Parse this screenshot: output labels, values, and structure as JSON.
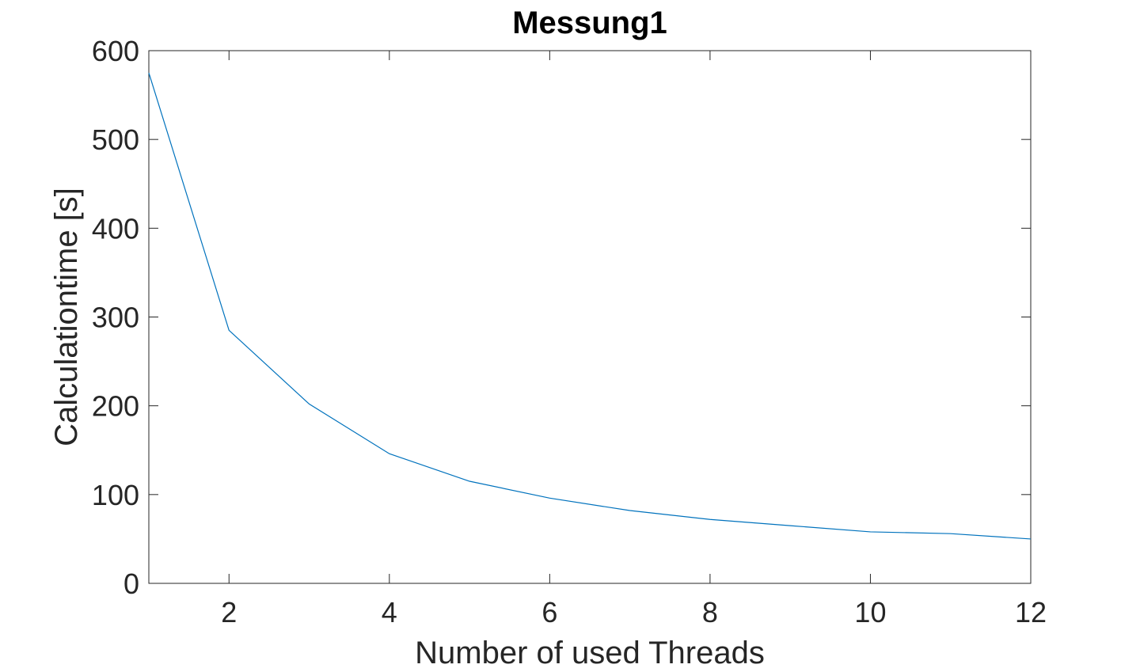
{
  "chart_data": {
    "type": "line",
    "title": "Messung1",
    "xlabel": "Number of used Threads",
    "ylabel": "Calculationtime [s]",
    "xlim": [
      1,
      12
    ],
    "ylim": [
      0,
      600
    ],
    "xticks": [
      2,
      4,
      6,
      8,
      10,
      12
    ],
    "yticks": [
      0,
      100,
      200,
      300,
      400,
      500,
      600
    ],
    "grid": false,
    "series": [
      {
        "color": "#0072BD",
        "x": [
          1,
          2,
          3,
          4,
          5,
          6,
          7,
          8,
          9,
          10,
          11,
          12
        ],
        "y": [
          575,
          285,
          202,
          146,
          115,
          96,
          82,
          72,
          65,
          58,
          56,
          50
        ]
      }
    ]
  }
}
